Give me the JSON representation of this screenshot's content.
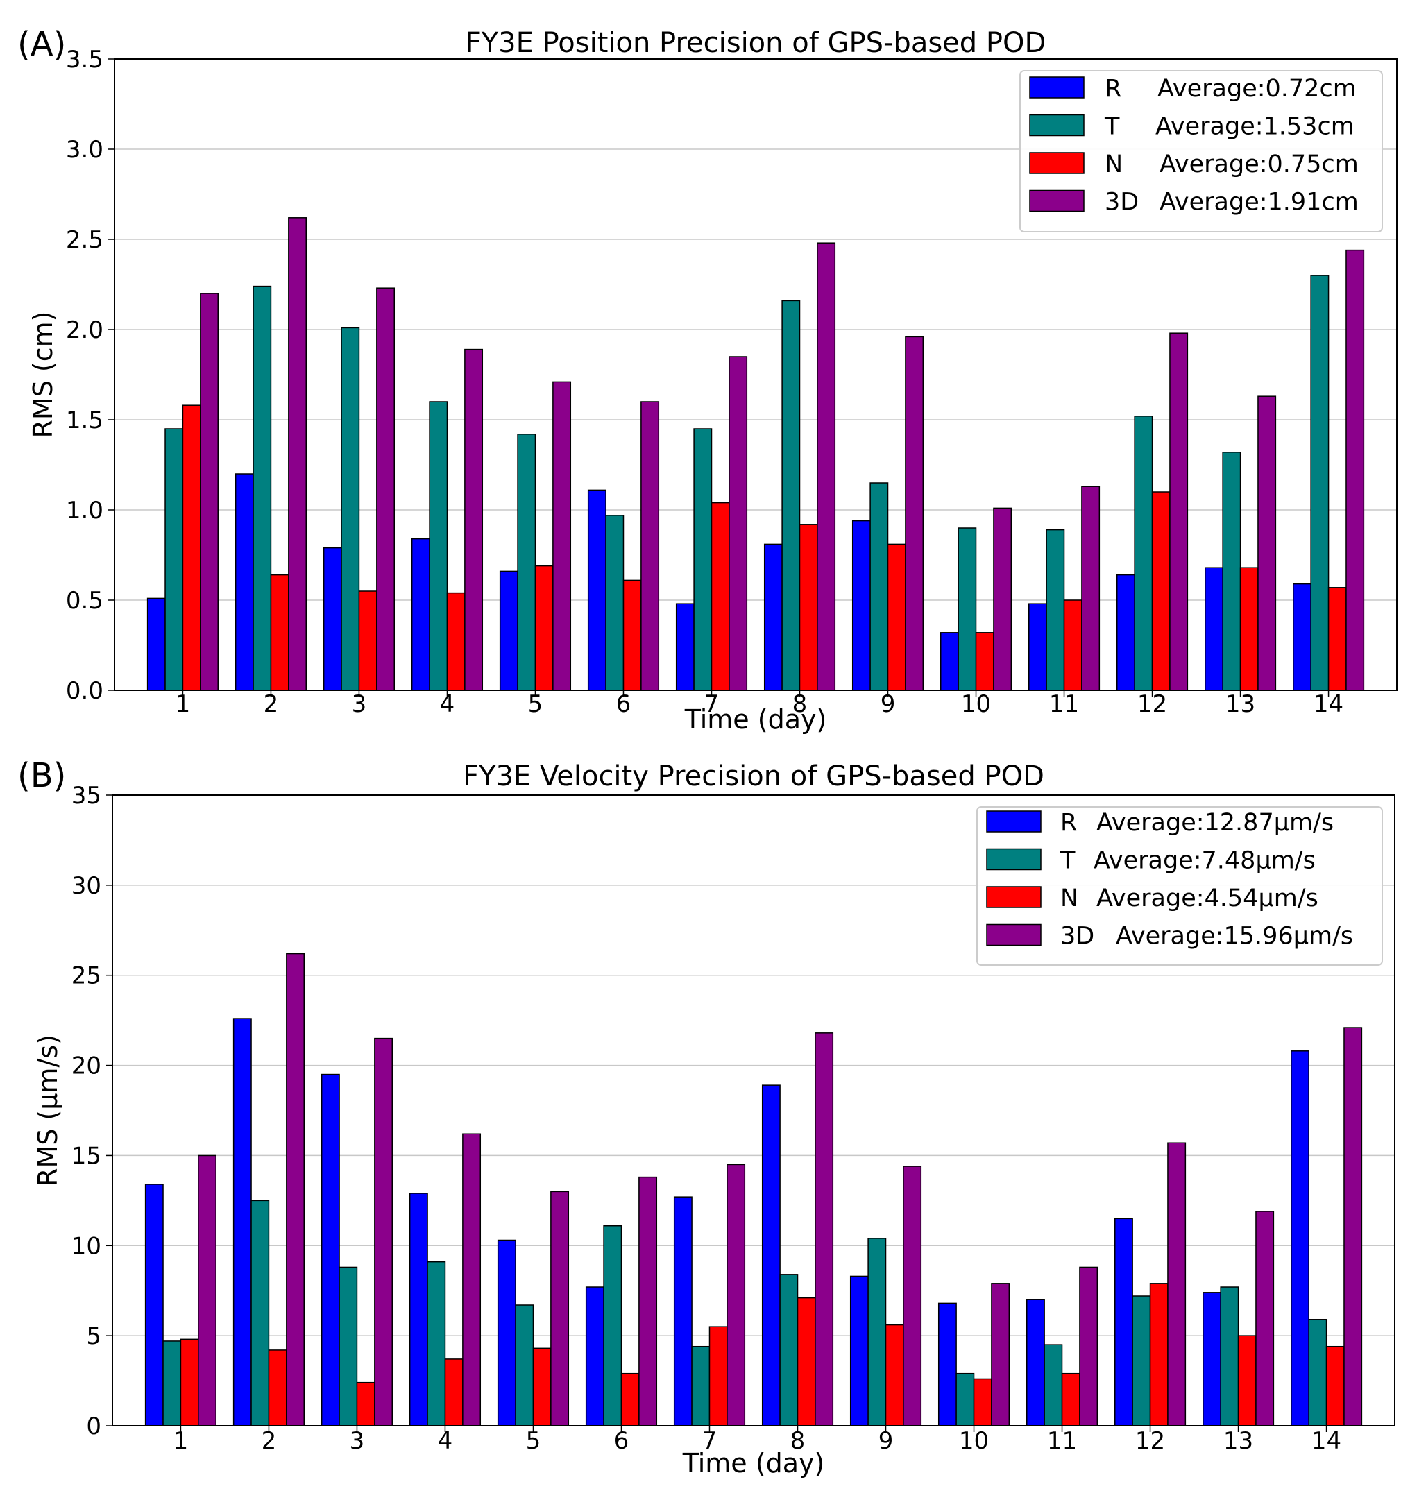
{
  "colors": {
    "R": "#0000ff",
    "T": "#008080",
    "N": "#ff0000",
    "3D": "#8b008b"
  },
  "chart_data": [
    {
      "panel_label": "(A)",
      "type": "bar",
      "title": "FY3E Position Precision of GPS-based POD",
      "xlabel": "Time (day)",
      "ylabel": "RMS (cm)",
      "ylim": [
        0,
        3.5
      ],
      "yticks": [
        "0.0",
        "0.5",
        "1.0",
        "1.5",
        "2.0",
        "2.5",
        "3.0",
        "3.5"
      ],
      "grid": "horizontal",
      "legend_position": "top-right",
      "categories": [
        "1",
        "2",
        "3",
        "4",
        "5",
        "6",
        "7",
        "8",
        "9",
        "10",
        "11",
        "12",
        "13",
        "14"
      ],
      "series": [
        {
          "name": "R",
          "legend_label": "Average:0.72cm",
          "values": [
            0.51,
            1.2,
            0.79,
            0.84,
            0.66,
            1.11,
            0.48,
            0.81,
            0.94,
            0.32,
            0.48,
            0.64,
            0.68,
            0.59
          ]
        },
        {
          "name": "T",
          "legend_label": "Average:1.53cm",
          "values": [
            1.45,
            2.24,
            2.01,
            1.6,
            1.42,
            0.97,
            1.45,
            2.16,
            1.15,
            0.9,
            0.89,
            1.52,
            1.32,
            2.3
          ]
        },
        {
          "name": "N",
          "legend_label": "Average:0.75cm",
          "values": [
            1.58,
            0.64,
            0.55,
            0.54,
            0.69,
            0.61,
            1.04,
            0.92,
            0.81,
            0.32,
            0.5,
            1.1,
            0.68,
            0.57
          ]
        },
        {
          "name": "3D",
          "legend_label": "Average:1.91cm",
          "values": [
            2.2,
            2.62,
            2.23,
            1.89,
            1.71,
            1.6,
            1.85,
            2.48,
            1.96,
            1.01,
            1.13,
            1.98,
            1.63,
            2.44
          ]
        }
      ]
    },
    {
      "panel_label": "(B)",
      "type": "bar",
      "title": "FY3E Velocity Precision of GPS-based POD",
      "xlabel": "Time (day)",
      "ylabel": "RMS (μm/s)",
      "ylim": [
        0,
        35
      ],
      "yticks": [
        "0",
        "5",
        "10",
        "15",
        "20",
        "25",
        "30",
        "35"
      ],
      "grid": "horizontal",
      "legend_position": "top-right",
      "categories": [
        "1",
        "2",
        "3",
        "4",
        "5",
        "6",
        "7",
        "8",
        "9",
        "10",
        "11",
        "12",
        "13",
        "14"
      ],
      "series": [
        {
          "name": "R",
          "legend_label": "Average:12.87μm/s",
          "values": [
            13.4,
            22.6,
            19.5,
            12.9,
            10.3,
            7.7,
            12.7,
            18.9,
            8.3,
            6.8,
            7.0,
            11.5,
            7.4,
            20.8
          ]
        },
        {
          "name": "T",
          "legend_label": "Average:7.48μm/s",
          "values": [
            4.7,
            12.5,
            8.8,
            9.1,
            6.7,
            11.1,
            4.4,
            8.4,
            10.4,
            2.9,
            4.5,
            7.2,
            7.7,
            5.9
          ]
        },
        {
          "name": "N",
          "legend_label": "Average:4.54μm/s",
          "values": [
            4.8,
            4.2,
            2.4,
            3.7,
            4.3,
            2.9,
            5.5,
            7.1,
            5.6,
            2.6,
            2.9,
            7.9,
            5.0,
            4.4
          ]
        },
        {
          "name": "3D",
          "legend_label": "Average:15.96μm/s",
          "values": [
            15.0,
            26.2,
            21.5,
            16.2,
            13.0,
            13.8,
            14.5,
            21.8,
            14.4,
            7.9,
            8.8,
            15.7,
            11.9,
            22.1
          ]
        }
      ]
    }
  ]
}
